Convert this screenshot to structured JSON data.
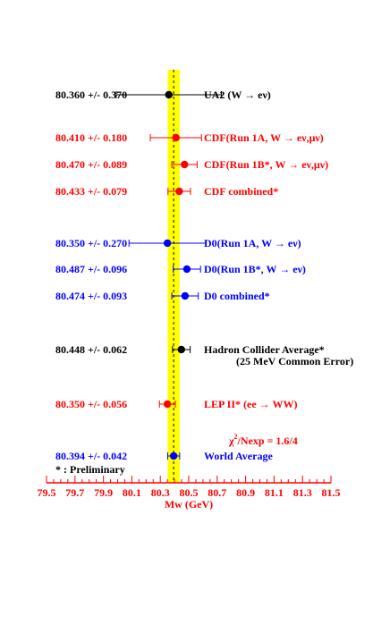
{
  "chart_data": {
    "type": "scatter",
    "orientation": "horizontal-errorbar",
    "xlabel": "Mw (GeV)",
    "xlim": [
      79.5,
      81.5
    ],
    "xticks": [
      79.5,
      79.7,
      79.9,
      80.1,
      80.3,
      80.5,
      80.7,
      80.9,
      81.1,
      81.3,
      81.5
    ],
    "xtick_labels": [
      "79.5",
      "79.7",
      "79.9",
      "80.1",
      "80.3",
      "80.5",
      "80.7",
      "80.9",
      "81.1",
      "81.3",
      "81.5"
    ],
    "band": {
      "center": 80.394,
      "half_width": 0.042,
      "color": "#ffff00"
    },
    "colors": {
      "black": "#000000",
      "red": "#ff0000",
      "blue": "#0000ff",
      "axis": "#ff0000"
    },
    "measurements": [
      {
        "value_text": "80.360 +/- 0.370",
        "value": 80.36,
        "error": 0.37,
        "label": "UA2 (W → eν)",
        "color": "black"
      },
      {
        "value_text": "80.410 +/- 0.180",
        "value": 80.41,
        "error": 0.18,
        "label": "CDF(Run 1A, W → eν,μν)",
        "color": "red"
      },
      {
        "value_text": "80.470 +/- 0.089",
        "value": 80.47,
        "error": 0.089,
        "label": "CDF(Run 1B*, W → eν,μν)",
        "color": "red"
      },
      {
        "value_text": "80.433 +/- 0.079",
        "value": 80.433,
        "error": 0.079,
        "label": "CDF combined*",
        "color": "red"
      },
      {
        "value_text": "80.350 +/- 0.270",
        "value": 80.35,
        "error": 0.27,
        "label": "D0(Run 1A,  W → eν)",
        "color": "blue"
      },
      {
        "value_text": "80.487 +/- 0.096",
        "value": 80.487,
        "error": 0.096,
        "label": "D0(Run 1B*,  W → eν)",
        "color": "blue"
      },
      {
        "value_text": "80.474 +/- 0.093",
        "value": 80.474,
        "error": 0.093,
        "label": "D0 combined*",
        "color": "blue"
      },
      {
        "value_text": "80.448 +/- 0.062",
        "value": 80.448,
        "error": 0.062,
        "label": "Hadron Collider Average*",
        "sublabel": "(25 MeV Common Error)",
        "color": "black"
      },
      {
        "value_text": "80.350 +/- 0.056",
        "value": 80.35,
        "error": 0.056,
        "label": "LEP II* (ee → WW)",
        "color": "red"
      },
      {
        "value_text": "80.394 +/- 0.042",
        "value": 80.394,
        "error": 0.042,
        "label": "World Average",
        "color": "blue"
      }
    ],
    "chi2_prefix": "χ",
    "chi2_exponent": "2",
    "chi2_suffix": "/Nexp = 1.6/4",
    "footnote": "* : Preliminary"
  }
}
